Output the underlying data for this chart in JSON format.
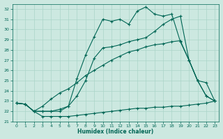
{
  "bg_color": "#cce8e0",
  "line_color": "#006655",
  "grid_color": "#aad4c8",
  "xlabel": "Humidex (Indice chaleur)",
  "xlim": [
    -0.5,
    23.5
  ],
  "ylim": [
    21,
    32.5
  ],
  "yticks": [
    21,
    22,
    23,
    24,
    25,
    26,
    27,
    28,
    29,
    30,
    31,
    32
  ],
  "xticks": [
    0,
    1,
    2,
    3,
    4,
    5,
    6,
    7,
    8,
    9,
    10,
    11,
    12,
    13,
    14,
    15,
    16,
    17,
    18,
    19,
    20,
    21,
    22,
    23
  ],
  "series1_x": [
    0,
    1,
    2,
    3,
    4,
    5,
    6,
    7,
    8,
    9,
    10,
    11,
    12,
    13,
    14,
    15,
    16,
    17,
    18,
    19,
    20,
    21,
    22,
    23
  ],
  "series1_y": [
    22.8,
    22.7,
    22.0,
    21.5,
    21.5,
    21.5,
    21.5,
    21.6,
    21.7,
    21.8,
    21.9,
    22.0,
    22.1,
    22.2,
    22.3,
    22.3,
    22.4,
    22.4,
    22.5,
    22.5,
    22.6,
    22.7,
    22.8,
    23.0
  ],
  "series2_x": [
    0,
    1,
    2,
    3,
    4,
    5,
    6,
    7,
    8,
    9,
    10,
    11,
    12,
    13,
    14,
    15,
    16,
    17,
    18,
    19,
    20,
    21,
    22,
    23
  ],
  "series2_y": [
    22.8,
    22.7,
    22.0,
    22.5,
    23.2,
    23.8,
    24.2,
    24.8,
    25.5,
    26.0,
    26.5,
    27.0,
    27.4,
    27.8,
    28.0,
    28.3,
    28.5,
    28.6,
    28.8,
    28.9,
    27.0,
    25.0,
    24.8,
    23.0
  ],
  "series3_x": [
    0,
    1,
    2,
    3,
    4,
    5,
    6,
    7,
    8,
    9,
    10,
    11,
    12,
    13,
    14,
    15,
    16,
    17,
    18,
    19,
    20,
    21,
    22,
    23
  ],
  "series3_y": [
    22.8,
    22.7,
    22.0,
    22.0,
    22.0,
    22.0,
    22.5,
    23.5,
    25.0,
    27.2,
    28.2,
    28.3,
    28.5,
    28.8,
    29.0,
    29.2,
    29.8,
    30.5,
    31.0,
    31.3,
    27.0,
    25.0,
    23.5,
    23.0
  ],
  "series4_x": [
    0,
    1,
    2,
    3,
    4,
    5,
    6,
    7,
    8,
    9,
    10,
    11,
    12,
    13,
    14,
    15,
    16,
    17,
    18,
    19,
    20,
    21,
    22,
    23
  ],
  "series4_y": [
    22.8,
    22.7,
    22.0,
    22.0,
    22.0,
    22.2,
    22.5,
    25.2,
    27.5,
    29.3,
    31.0,
    30.8,
    31.0,
    30.5,
    31.8,
    32.2,
    31.5,
    31.3,
    31.5,
    28.8,
    27.0,
    25.0,
    23.5,
    23.0
  ]
}
